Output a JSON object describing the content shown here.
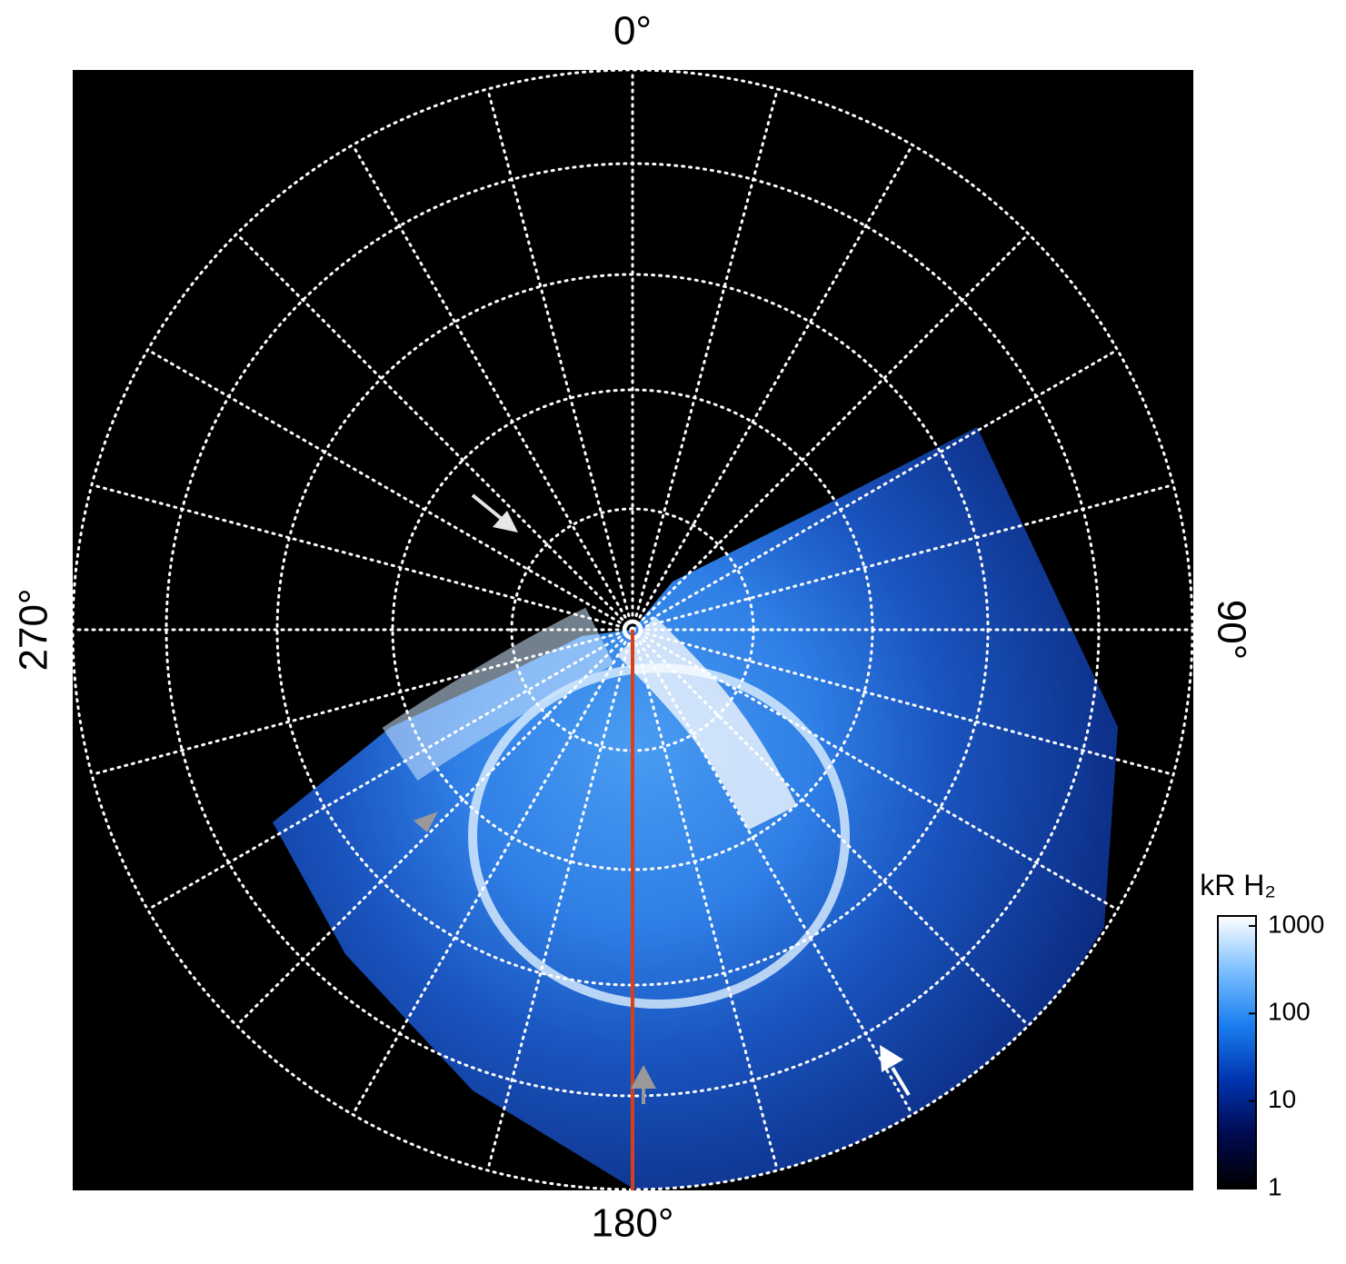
{
  "chart_data": {
    "type": "polar-image",
    "angle_ticks": [
      {
        "value": 0,
        "label": "0°"
      },
      {
        "value": 90,
        "label": "90°"
      },
      {
        "value": 180,
        "label": "180°"
      },
      {
        "value": 270,
        "label": "270°"
      }
    ],
    "colorbar": {
      "title": "kR H₂",
      "scale": "log",
      "clim": [
        1,
        1300
      ],
      "ticks": [
        1,
        10,
        100,
        1000
      ],
      "colors": [
        "#000000",
        "#000a50",
        "#0035b0",
        "#1a7ef0",
        "#7cc0ff",
        "#ffffff"
      ]
    }
  }
}
